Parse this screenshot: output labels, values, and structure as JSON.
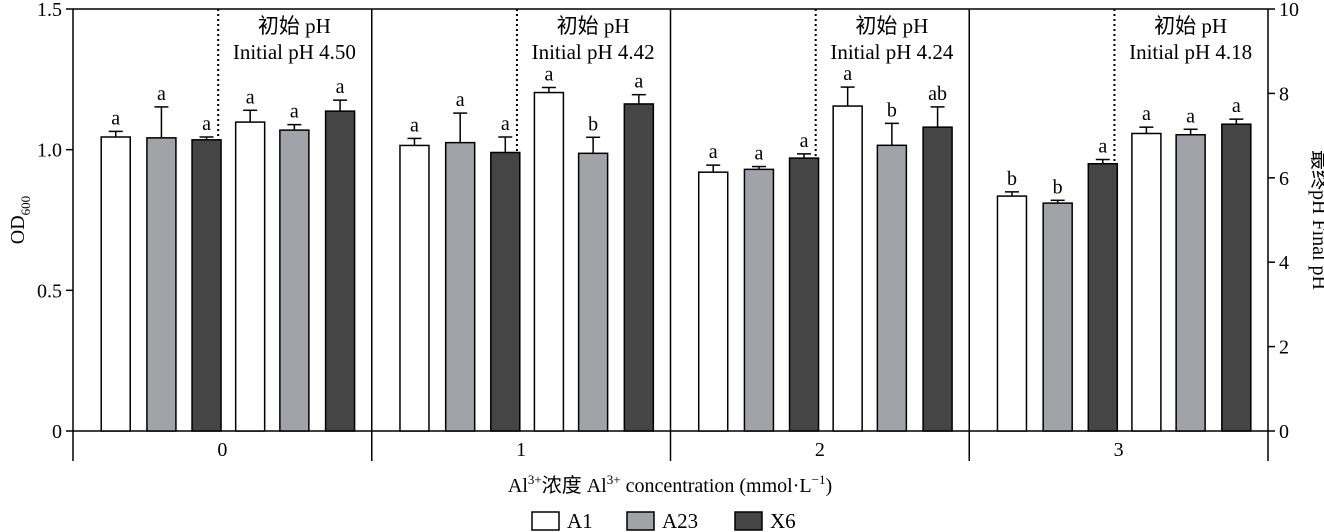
{
  "chart_data": {
    "type": "bar",
    "x_label": "Al³⁺浓度 Al³⁺ concentration (mmol·L⁻¹)",
    "x_label_parts": {
      "pre": "Al",
      "sup1": "3+",
      "mid": "浓度 Al",
      "sup2": "3+",
      "post": " concentration (mmol·L",
      "sup3": "−1",
      "end": ")"
    },
    "y_left": {
      "label_main": "OD",
      "label_sub": "600",
      "range": [
        0,
        1.5
      ],
      "ticks": [
        0,
        0.5,
        1.0,
        1.5
      ],
      "tick_labels": [
        "0",
        "0.5",
        "1.0",
        "1.5"
      ]
    },
    "y_right": {
      "label": "最终pH Final pH",
      "range": [
        0,
        10
      ],
      "ticks": [
        0,
        2,
        4,
        6,
        8,
        10
      ],
      "tick_labels": [
        "0",
        "2",
        "4",
        "6",
        "8",
        "10"
      ]
    },
    "groups": [
      {
        "category": "0",
        "initial_ph_cn": "初始 pH",
        "initial_ph_en": "Initial pH 4.50",
        "od600": {
          "values": [
            1.045,
            1.042,
            1.035
          ],
          "errors": [
            0.02,
            0.11,
            0.01
          ],
          "letters": [
            "a",
            "a",
            "a"
          ]
        },
        "final_ph": {
          "values": [
            7.32,
            7.13,
            7.58
          ],
          "errors": [
            0.28,
            0.13,
            0.26
          ],
          "letters": [
            "a",
            "a",
            "a"
          ]
        }
      },
      {
        "category": "1",
        "initial_ph_cn": "初始 pH",
        "initial_ph_en": "Initial pH 4.42",
        "od600": {
          "values": [
            1.015,
            1.025,
            0.99
          ],
          "errors": [
            0.025,
            0.105,
            0.055
          ],
          "letters": [
            "a",
            "a",
            "a"
          ]
        },
        "final_ph": {
          "values": [
            8.02,
            6.58,
            7.75
          ],
          "errors": [
            0.12,
            0.38,
            0.22
          ],
          "letters": [
            "a",
            "b",
            "a"
          ]
        }
      },
      {
        "category": "2",
        "initial_ph_cn": "初始 pH",
        "initial_ph_en": "Initial pH 4.24",
        "od600": {
          "values": [
            0.92,
            0.93,
            0.97
          ],
          "errors": [
            0.025,
            0.01,
            0.015
          ],
          "letters": [
            "a",
            "a",
            "a"
          ]
        },
        "final_ph": {
          "values": [
            7.7,
            6.77,
            7.2
          ],
          "errors": [
            0.45,
            0.52,
            0.48
          ],
          "letters": [
            "a",
            "b",
            "ab"
          ]
        }
      },
      {
        "category": "3",
        "initial_ph_cn": "初始 pH",
        "initial_ph_en": "Initial pH 4.18",
        "od600": {
          "values": [
            0.835,
            0.81,
            0.95
          ],
          "errors": [
            0.015,
            0.01,
            0.015
          ],
          "letters": [
            "b",
            "b",
            "a"
          ]
        },
        "final_ph": {
          "values": [
            7.05,
            7.02,
            7.27
          ],
          "errors": [
            0.15,
            0.13,
            0.12
          ],
          "letters": [
            "a",
            "a",
            "a"
          ]
        }
      }
    ],
    "series": [
      {
        "name": "A1",
        "color": "#ffffff"
      },
      {
        "name": "A23",
        "color": "#a2a2a9"
      },
      {
        "name": "X6",
        "color": "#454545"
      }
    ],
    "legend_placement": "bottom-center",
    "grid": false
  }
}
